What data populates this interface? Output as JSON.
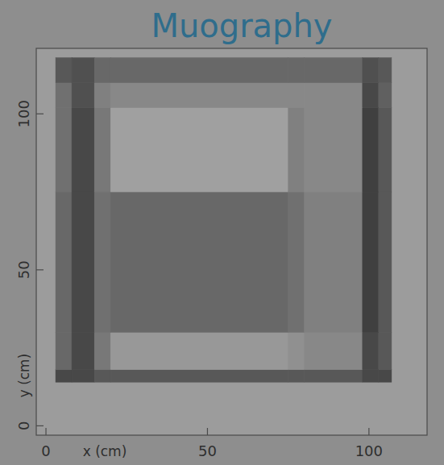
{
  "chart_data": {
    "type": "heatmap",
    "title": "Muography",
    "xlabel": "x (cm)",
    "ylabel": "y (cm)",
    "xlim": [
      -3,
      118
    ],
    "ylim": [
      -3,
      121
    ],
    "xticks": [
      0,
      50,
      100
    ],
    "yticks": [
      0,
      50,
      100
    ],
    "x_edges": [
      3,
      8,
      15,
      20,
      75,
      80,
      98,
      103,
      107
    ],
    "y_edges": [
      14,
      18,
      30,
      75,
      102,
      110,
      118
    ],
    "cells": [
      [
        0.8,
        0.8,
        0.7,
        0.7,
        0.7,
        0.7,
        0.8,
        0.8
      ],
      [
        0.6,
        0.8,
        0.5,
        0.3,
        0.35,
        0.4,
        0.8,
        0.7
      ],
      [
        0.6,
        0.8,
        0.55,
        0.6,
        0.55,
        0.45,
        0.85,
        0.7
      ],
      [
        0.55,
        0.8,
        0.5,
        0.25,
        0.45,
        0.4,
        0.85,
        0.7
      ],
      [
        0.55,
        0.75,
        0.45,
        0.4,
        0.4,
        0.4,
        0.8,
        0.65
      ],
      [
        0.7,
        0.75,
        0.6,
        0.6,
        0.6,
        0.6,
        0.75,
        0.7
      ]
    ]
  }
}
